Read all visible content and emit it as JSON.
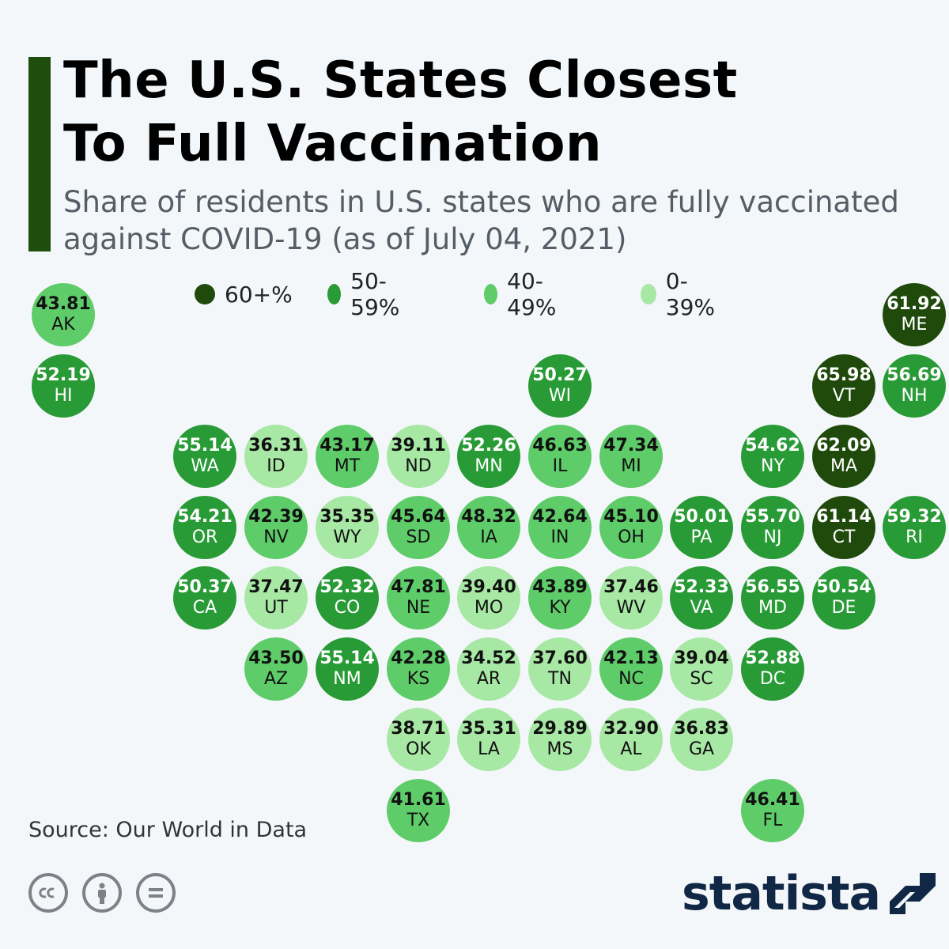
{
  "header": {
    "title_lines": [
      "The U.S. States Closest",
      "To Full Vaccination"
    ],
    "subtitle_lines": [
      "Share of residents in U.S. states who are fully vaccinated",
      "against COVID-19 (as of July 04, 2021)"
    ]
  },
  "legend": [
    {
      "label": "60+%",
      "color": "#1f4a0c"
    },
    {
      "label": "50-59%",
      "color": "#289b36"
    },
    {
      "label": "40-49%",
      "color": "#5fcc6a"
    },
    {
      "label": "0-39%",
      "color": "#a8e8a5"
    }
  ],
  "colors": {
    "c60": "#1f4a0c",
    "c50": "#289b36",
    "c40": "#5fcc6a",
    "c0": "#a8e8a5",
    "accent": "#1e4d0c",
    "background": "#f4f7fa",
    "brand": "#102845"
  },
  "chart_data": {
    "type": "tile-map",
    "unit": "% fully vaccinated",
    "states": [
      {
        "abbr": "AK",
        "value": 43.81,
        "row": 0,
        "col": 0
      },
      {
        "abbr": "ME",
        "value": 61.92,
        "row": 0,
        "col": 12
      },
      {
        "abbr": "HI",
        "value": 52.19,
        "row": 1,
        "col": 0
      },
      {
        "abbr": "WI",
        "value": 50.27,
        "row": 1,
        "col": 7
      },
      {
        "abbr": "VT",
        "value": 65.98,
        "row": 1,
        "col": 11
      },
      {
        "abbr": "NH",
        "value": 56.69,
        "row": 1,
        "col": 12
      },
      {
        "abbr": "WA",
        "value": 55.14,
        "row": 2,
        "col": 2
      },
      {
        "abbr": "ID",
        "value": 36.31,
        "row": 2,
        "col": 3
      },
      {
        "abbr": "MT",
        "value": 43.17,
        "row": 2,
        "col": 4
      },
      {
        "abbr": "ND",
        "value": 39.11,
        "row": 2,
        "col": 5
      },
      {
        "abbr": "MN",
        "value": 52.26,
        "row": 2,
        "col": 6
      },
      {
        "abbr": "IL",
        "value": 46.63,
        "row": 2,
        "col": 7
      },
      {
        "abbr": "MI",
        "value": 47.34,
        "row": 2,
        "col": 8
      },
      {
        "abbr": "NY",
        "value": 54.62,
        "row": 2,
        "col": 10
      },
      {
        "abbr": "MA",
        "value": 62.09,
        "row": 2,
        "col": 11
      },
      {
        "abbr": "OR",
        "value": 54.21,
        "row": 3,
        "col": 2
      },
      {
        "abbr": "NV",
        "value": 42.39,
        "row": 3,
        "col": 3
      },
      {
        "abbr": "WY",
        "value": 35.35,
        "row": 3,
        "col": 4
      },
      {
        "abbr": "SD",
        "value": 45.64,
        "row": 3,
        "col": 5
      },
      {
        "abbr": "IA",
        "value": 48.32,
        "row": 3,
        "col": 6
      },
      {
        "abbr": "IN",
        "value": 42.64,
        "row": 3,
        "col": 7
      },
      {
        "abbr": "OH",
        "value": 45.1,
        "row": 3,
        "col": 8
      },
      {
        "abbr": "PA",
        "value": 50.01,
        "row": 3,
        "col": 9
      },
      {
        "abbr": "NJ",
        "value": 55.7,
        "row": 3,
        "col": 10
      },
      {
        "abbr": "CT",
        "value": 61.14,
        "row": 3,
        "col": 11
      },
      {
        "abbr": "RI",
        "value": 59.32,
        "row": 3,
        "col": 12
      },
      {
        "abbr": "CA",
        "value": 50.37,
        "row": 4,
        "col": 2
      },
      {
        "abbr": "UT",
        "value": 37.47,
        "row": 4,
        "col": 3
      },
      {
        "abbr": "CO",
        "value": 52.32,
        "row": 4,
        "col": 4
      },
      {
        "abbr": "NE",
        "value": 47.81,
        "row": 4,
        "col": 5
      },
      {
        "abbr": "MO",
        "value": 39.4,
        "row": 4,
        "col": 6
      },
      {
        "abbr": "KY",
        "value": 43.89,
        "row": 4,
        "col": 7
      },
      {
        "abbr": "WV",
        "value": 37.46,
        "row": 4,
        "col": 8
      },
      {
        "abbr": "VA",
        "value": 52.33,
        "row": 4,
        "col": 9
      },
      {
        "abbr": "MD",
        "value": 56.55,
        "row": 4,
        "col": 10
      },
      {
        "abbr": "DE",
        "value": 50.54,
        "row": 4,
        "col": 11
      },
      {
        "abbr": "AZ",
        "value": 43.5,
        "row": 5,
        "col": 3
      },
      {
        "abbr": "NM",
        "value": 55.14,
        "row": 5,
        "col": 4
      },
      {
        "abbr": "KS",
        "value": 42.28,
        "row": 5,
        "col": 5
      },
      {
        "abbr": "AR",
        "value": 34.52,
        "row": 5,
        "col": 6
      },
      {
        "abbr": "TN",
        "value": 37.6,
        "row": 5,
        "col": 7
      },
      {
        "abbr": "NC",
        "value": 42.13,
        "row": 5,
        "col": 8
      },
      {
        "abbr": "SC",
        "value": 39.04,
        "row": 5,
        "col": 9
      },
      {
        "abbr": "DC",
        "value": 52.88,
        "row": 5,
        "col": 10
      },
      {
        "abbr": "OK",
        "value": 38.71,
        "row": 6,
        "col": 5
      },
      {
        "abbr": "LA",
        "value": 35.31,
        "row": 6,
        "col": 6
      },
      {
        "abbr": "MS",
        "value": 29.89,
        "row": 6,
        "col": 7
      },
      {
        "abbr": "AL",
        "value": 32.9,
        "row": 6,
        "col": 8
      },
      {
        "abbr": "GA",
        "value": 36.83,
        "row": 6,
        "col": 9
      },
      {
        "abbr": "TX",
        "value": 41.61,
        "row": 7,
        "col": 5
      },
      {
        "abbr": "FL",
        "value": 46.41,
        "row": 7,
        "col": 10
      }
    ]
  },
  "footer": {
    "source": "Source: Our World in Data",
    "brand": "statista",
    "license_icons": [
      "cc-icon",
      "attribution-icon",
      "no-derivatives-icon"
    ]
  }
}
